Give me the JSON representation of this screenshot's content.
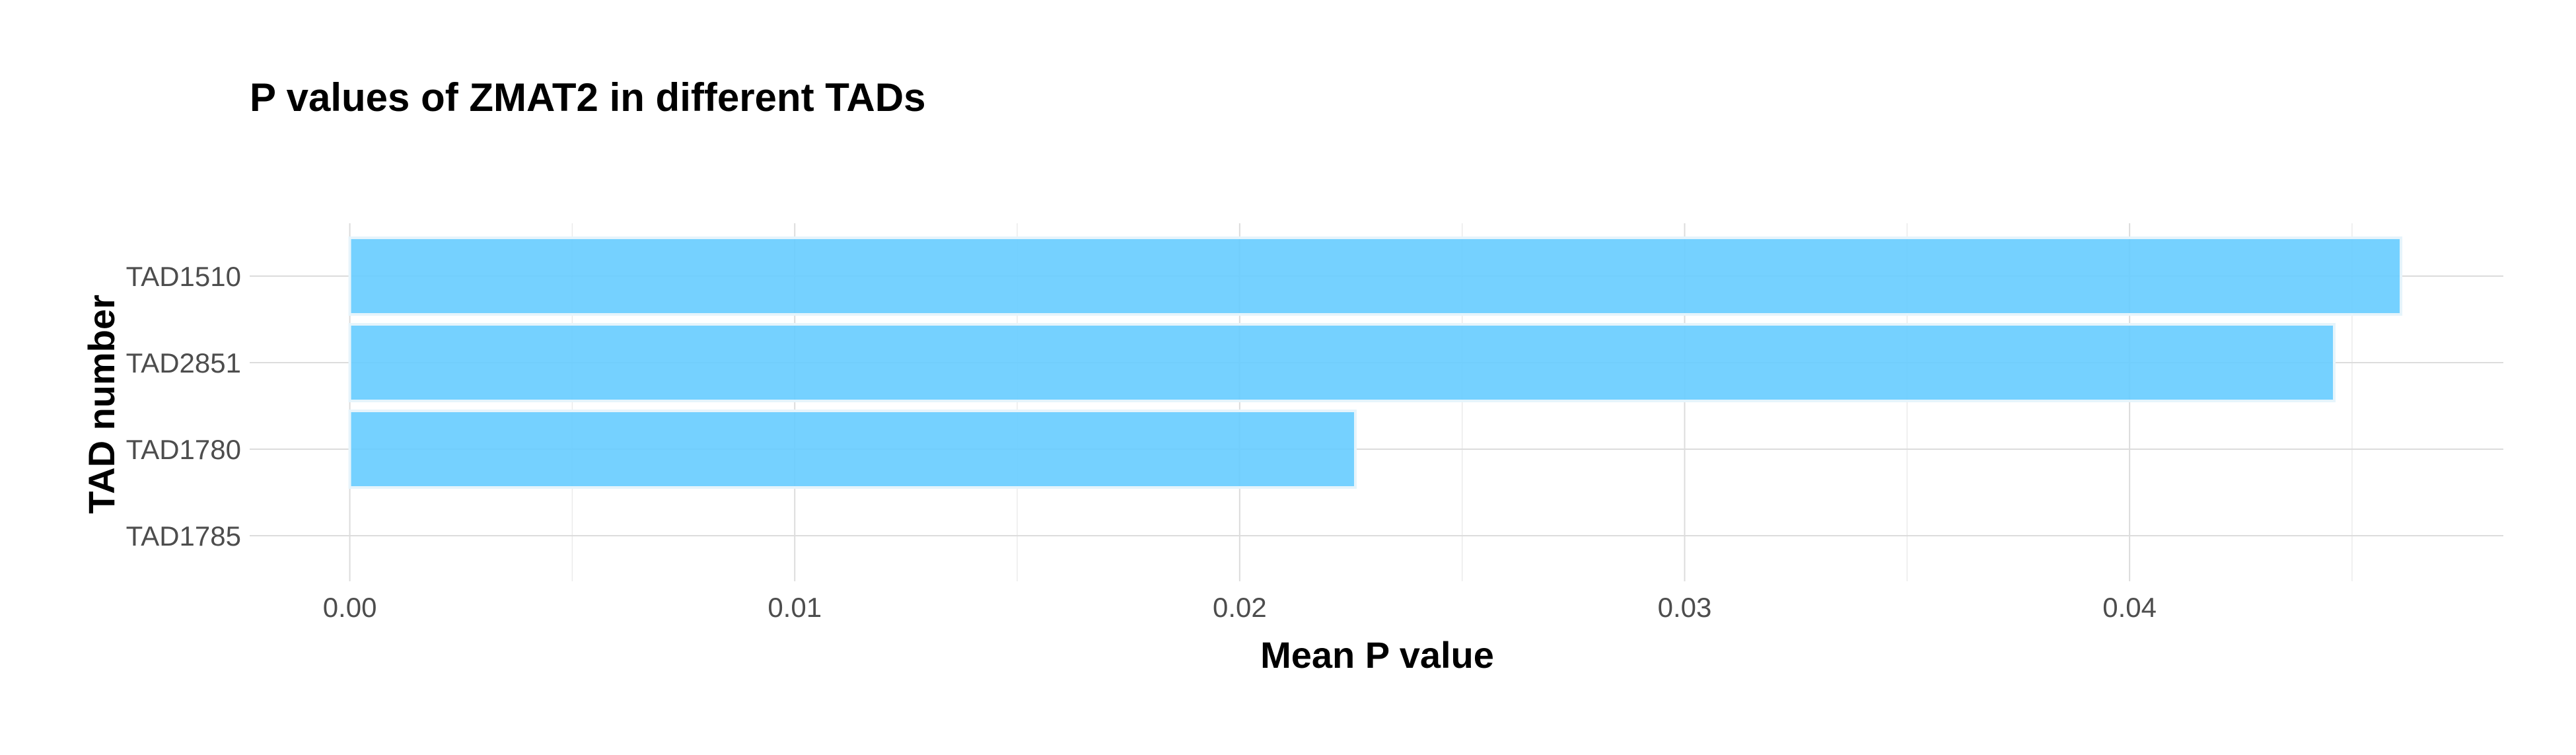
{
  "chart_data": {
    "type": "bar",
    "orientation": "horizontal",
    "title": "P values of ZMAT2 in different TADs",
    "xlabel": "Mean P value",
    "ylabel": "TAD number",
    "categories": [
      "TAD1510",
      "TAD2851",
      "TAD1780",
      "TAD1785"
    ],
    "values": [
      0.0461,
      0.0446,
      0.0226,
      0
    ],
    "xlim": [
      -0.00225,
      0.0484
    ],
    "xticks": [
      0.0,
      0.01,
      0.02,
      0.03,
      0.04
    ],
    "xtick_labels": [
      "0.00",
      "0.01",
      "0.02",
      "0.03",
      "0.04"
    ],
    "bar_color": "#66CCFF",
    "grid": true,
    "legend": "none"
  }
}
